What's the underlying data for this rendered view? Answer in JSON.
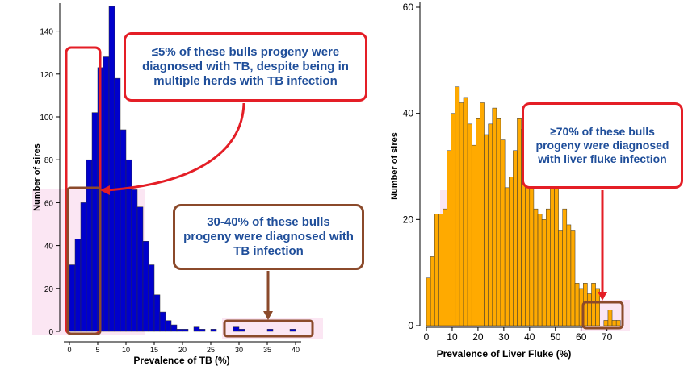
{
  "chart_data": [
    {
      "type": "bar",
      "xlabel": "Prevalence of TB (%)",
      "ylabel": "Number of sires",
      "xlim": [
        -2,
        42
      ],
      "ylim": [
        0,
        150
      ],
      "xticks": [
        "0",
        "5",
        "10",
        "15",
        "20",
        "25",
        "30",
        "35",
        "40"
      ],
      "yticks": [
        "0",
        "20",
        "40",
        "60",
        "80",
        "100",
        "120",
        "140"
      ],
      "bin_width": 1,
      "bar_color": "#0000cc",
      "grid": false,
      "bins_start": [
        0,
        1,
        2,
        3,
        4,
        5,
        6,
        7,
        8,
        9,
        10,
        11,
        12,
        13,
        14,
        15,
        16,
        17,
        18,
        19,
        20,
        21,
        22,
        23,
        24,
        25,
        26,
        27,
        28,
        29,
        30,
        31,
        32,
        33,
        34,
        35,
        36,
        37,
        38,
        39
      ],
      "values": [
        31,
        43,
        60,
        80,
        102,
        123,
        128,
        152,
        118,
        94,
        80,
        66,
        58,
        42,
        31,
        17,
        9,
        5,
        3,
        1,
        1,
        0,
        2,
        1,
        0,
        1,
        0,
        0,
        0,
        2,
        1,
        0,
        0,
        0,
        0,
        1,
        0,
        0,
        0,
        1
      ]
    },
    {
      "type": "bar",
      "xlabel": "Prevalence of Liver Fluke (%)",
      "ylabel": "Number of sires",
      "xlim": [
        0,
        82
      ],
      "ylim": [
        0,
        60
      ],
      "xticks": [
        "0",
        "10",
        "20",
        "30",
        "40",
        "50",
        "60",
        "70"
      ],
      "yticks": [
        "0",
        "20",
        "40",
        "60"
      ],
      "bin_width": 1.6,
      "bar_color": "#ffaa00",
      "grid": false,
      "bins_start": [
        0,
        1.6,
        3.2,
        4.8,
        6.4,
        8,
        9.6,
        11.2,
        12.8,
        14.4,
        16,
        17.6,
        19.2,
        20.8,
        22.4,
        24,
        25.6,
        27.2,
        28.8,
        30.4,
        32,
        33.6,
        35.2,
        36.8,
        38.4,
        40,
        41.6,
        43.2,
        44.8,
        46.4,
        48,
        49.6,
        51.2,
        52.8,
        54.4,
        56,
        57.6,
        59.2,
        60.8,
        62.4,
        64,
        65.6,
        67.2,
        68.8,
        70.4,
        72,
        73.6,
        75.2
      ],
      "values": [
        9,
        13,
        21,
        21,
        22,
        33,
        40,
        45,
        42,
        43,
        38,
        34,
        39,
        42,
        36,
        38,
        41,
        39,
        35,
        26,
        28,
        33,
        39,
        37,
        36,
        30,
        22,
        21,
        20,
        22,
        30,
        28,
        18,
        22,
        19,
        18,
        8,
        7,
        8,
        6,
        8,
        7,
        0,
        1,
        3,
        1,
        1,
        0
      ]
    }
  ],
  "callouts": {
    "tb_low": "≤5% of these bulls progeny were diagnosed with TB, despite being in multiple herds with TB infection",
    "tb_high": "30-40% of these bulls progeny were diagnosed with TB infection",
    "lf_high": "≥70% of these bulls progeny were diagnosed with liver fluke infection"
  },
  "colors": {
    "red": "#e41e26",
    "brown": "#8b4a2b",
    "callout_text": "#1f4e9a"
  }
}
